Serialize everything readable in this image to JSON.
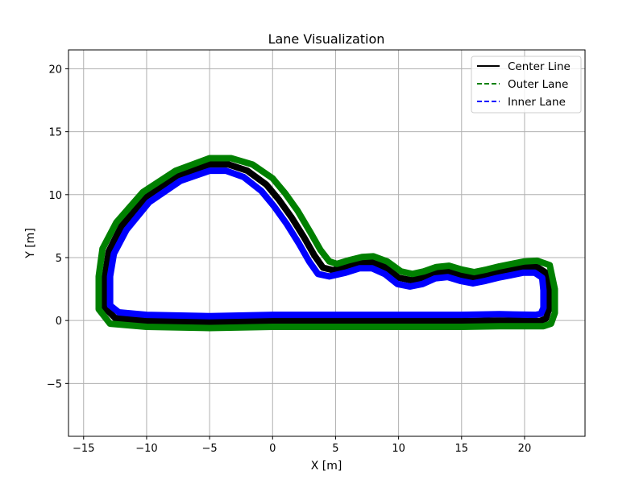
{
  "chart_data": {
    "type": "line",
    "title": "Lane Visualization",
    "xlabel": "X [m]",
    "ylabel": "Y [m]",
    "xlim": [
      -16.2,
      24.8
    ],
    "ylim": [
      -9.2,
      21.5
    ],
    "xticks": [
      -15,
      -10,
      -5,
      0,
      5,
      10,
      15,
      20
    ],
    "xtick_labels": [
      "−15",
      "−10",
      "−5",
      "0",
      "5",
      "10",
      "15",
      "20"
    ],
    "yticks": [
      -5,
      0,
      5,
      10,
      15,
      20
    ],
    "ytick_labels": [
      "−5",
      "0",
      "5",
      "10",
      "15",
      "20"
    ],
    "grid": true,
    "legend_position": "top-right",
    "series": [
      {
        "name": "Center Line",
        "color": "#000000",
        "dash": "solid",
        "x": [
          21.2,
          18,
          15,
          10,
          5,
          0,
          -5,
          -10,
          -12.5,
          -13.3,
          -13.3,
          -13,
          -12,
          -10,
          -7.5,
          -5,
          -3.5,
          -2,
          -0.5,
          0.5,
          1.5,
          2.5,
          3.3,
          4,
          4.8,
          6,
          7,
          8,
          9,
          10,
          11,
          12,
          13,
          14,
          15,
          16,
          17,
          18,
          19,
          20,
          21,
          21.7,
          21.9,
          21.9,
          21.7,
          21.2
        ],
        "y": [
          -0.05,
          0,
          -0.05,
          -0.05,
          -0.05,
          -0.05,
          -0.1,
          -0.05,
          0.2,
          1.0,
          3.5,
          5.5,
          7.5,
          9.8,
          11.5,
          12.4,
          12.4,
          11.9,
          10.8,
          9.6,
          8.2,
          6.6,
          5.2,
          4.2,
          4.0,
          4.3,
          4.6,
          4.6,
          4.2,
          3.4,
          3.2,
          3.4,
          3.8,
          3.9,
          3.6,
          3.4,
          3.6,
          3.85,
          4.05,
          4.25,
          4.25,
          3.8,
          2.5,
          0.8,
          0.15,
          -0.05
        ]
      },
      {
        "name": "Outer Lane",
        "color": "#008000",
        "dash": "dashed",
        "x": [
          21.5,
          18,
          15,
          10,
          5,
          0,
          -5,
          -10,
          -12.9,
          -13.8,
          -13.8,
          -13.5,
          -12.4,
          -10.3,
          -7.7,
          -5,
          -3.3,
          -1.6,
          0,
          1.0,
          2.0,
          3.0,
          3.8,
          4.5,
          5.1,
          6.1,
          7.1,
          8.0,
          9.1,
          10.2,
          11.1,
          12.0,
          13.0,
          14.0,
          15.0,
          16.0,
          17.0,
          18.0,
          19.0,
          20.0,
          21.0,
          22.0,
          22.4,
          22.4,
          22.1,
          21.5
        ],
        "y": [
          -0.45,
          -0.45,
          -0.5,
          -0.5,
          -0.5,
          -0.5,
          -0.6,
          -0.5,
          -0.25,
          0.9,
          3.5,
          5.7,
          7.8,
          10.2,
          11.9,
          12.9,
          12.9,
          12.4,
          11.3,
          10.1,
          8.7,
          7.0,
          5.6,
          4.7,
          4.5,
          4.8,
          5.05,
          5.1,
          4.7,
          3.9,
          3.7,
          3.9,
          4.25,
          4.35,
          4.05,
          3.85,
          4.05,
          4.3,
          4.5,
          4.7,
          4.75,
          4.4,
          2.5,
          0.6,
          -0.25,
          -0.45
        ]
      },
      {
        "name": "Inner Lane",
        "color": "#0000ff",
        "dash": "dashed",
        "x": [
          20.9,
          18,
          15,
          10,
          5,
          0,
          -5,
          -10,
          -12.2,
          -12.9,
          -12.9,
          -12.6,
          -11.6,
          -9.8,
          -7.3,
          -5,
          -3.7,
          -2.3,
          -0.9,
          0.1,
          1.1,
          2.1,
          2.9,
          3.6,
          4.5,
          5.8,
          6.9,
          7.9,
          8.9,
          9.9,
          10.9,
          11.9,
          12.9,
          13.9,
          14.9,
          15.9,
          16.9,
          17.9,
          18.9,
          19.9,
          20.8,
          21.4,
          21.5,
          21.5,
          21.3,
          20.9
        ],
        "y": [
          0.45,
          0.5,
          0.45,
          0.45,
          0.45,
          0.45,
          0.35,
          0.45,
          0.65,
          1.2,
          3.5,
          5.3,
          7.2,
          9.4,
          11.1,
          11.9,
          11.9,
          11.4,
          10.3,
          9.1,
          7.7,
          6.1,
          4.7,
          3.7,
          3.5,
          3.8,
          4.15,
          4.15,
          3.7,
          2.9,
          2.7,
          2.9,
          3.35,
          3.45,
          3.15,
          2.95,
          3.15,
          3.4,
          3.6,
          3.8,
          3.8,
          3.4,
          2.4,
          1.0,
          0.55,
          0.45
        ]
      }
    ]
  }
}
